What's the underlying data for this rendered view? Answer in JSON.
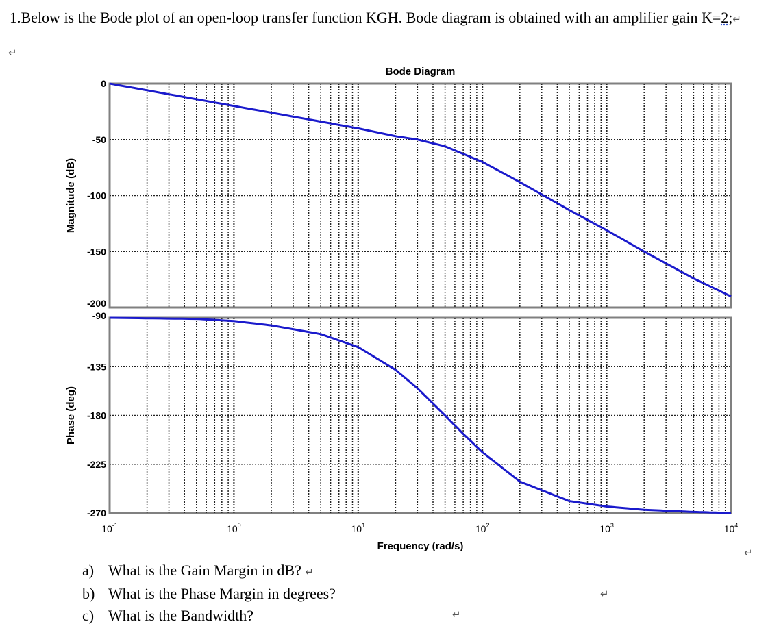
{
  "problem": {
    "number": "1.",
    "text_before": "Below is the Bode plot of an open-loop transfer function KGH.  Bode diagram is obtained with an amplifier gain K=",
    "gain_value": "2;",
    "return_mark": "↵"
  },
  "questions": [
    {
      "letter": "a)",
      "text": "What is the Gain Margin in dB?"
    },
    {
      "letter": "b)",
      "text": "What is the Phase Margin in degrees?"
    },
    {
      "letter": "c)",
      "text": "What is the Bandwidth?"
    }
  ],
  "colors": {
    "line": "#1a1acc",
    "grid": "#222222",
    "frame": "#808080"
  },
  "chart_data": {
    "type": "line",
    "title": "Bode Diagram",
    "xlabel": "Frequency  (rad/s)",
    "x_scale": "log",
    "xlim": [
      0.1,
      10000
    ],
    "x_ticks": [
      0.1,
      1,
      10,
      100,
      1000,
      10000
    ],
    "x_tick_labels": [
      {
        "base": "10",
        "exp": "-1"
      },
      {
        "base": "10",
        "exp": "0"
      },
      {
        "base": "10",
        "exp": "1"
      },
      {
        "base": "10",
        "exp": "2"
      },
      {
        "base": "10",
        "exp": "3"
      },
      {
        "base": "10",
        "exp": "4"
      }
    ],
    "grid": true,
    "panels": [
      {
        "name": "magnitude",
        "ylabel": "Magnitude (dB)",
        "ylim": [
          -200,
          0
        ],
        "y_ticks": [
          0,
          -50,
          -100,
          -150,
          -200
        ],
        "series": [
          {
            "x": [
              0.1,
              0.2,
              0.5,
              1,
              2,
              5,
              10,
              20,
              30,
              50,
              100,
              200,
              500,
              1000,
              2000,
              5000,
              10000
            ],
            "values": [
              0,
              -6,
              -14,
              -20,
              -26,
              -34,
              -40,
              -47,
              -50,
              -56,
              -70,
              -88,
              -113,
              -131,
              -150,
              -174,
              -190
            ]
          }
        ]
      },
      {
        "name": "phase",
        "ylabel": "Phase (deg)",
        "ylim": [
          -270,
          -90
        ],
        "y_ticks": [
          -90,
          -135,
          -180,
          -225,
          -270
        ],
        "series": [
          {
            "x": [
              0.1,
              0.5,
              1,
              2,
              5,
              10,
              20,
              30,
              50,
              70,
              100,
              200,
              500,
              1000,
              2000,
              5000,
              10000
            ],
            "values": [
              -90,
              -91,
              -93,
              -97,
              -105,
              -117,
              -138,
              -155,
              -180,
              -197,
              -214,
              -241,
              -259,
              -264,
              -267,
              -269,
              -270
            ]
          }
        ]
      }
    ]
  }
}
